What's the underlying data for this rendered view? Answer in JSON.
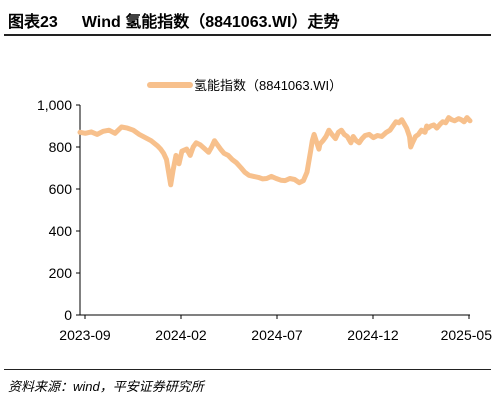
{
  "figure": {
    "label": "图表23",
    "title": "Wind 氢能指数（8841063.WI）走势",
    "source": "资料来源：wind，平安证券研究所"
  },
  "colors": {
    "line": "#F7C08C",
    "axis": "#000000"
  },
  "chart_data": {
    "type": "line",
    "title": "",
    "xlabel": "",
    "ylabel": "",
    "ylim": [
      0,
      1000
    ],
    "yticks": [
      "0",
      "200",
      "400",
      "600",
      "800",
      "1,000"
    ],
    "xtick_labels": [
      "2023-09",
      "2024-02",
      "2024-07",
      "2024-12",
      "2025-05"
    ],
    "xlim": [
      "2023-09-01",
      "2025-06-20"
    ],
    "legend_position": "top-center",
    "grid": false,
    "series": [
      {
        "name": "氢能指数（8841063.WI）",
        "x": [
          "2023-09-01",
          "2023-09-10",
          "2023-09-20",
          "2023-09-30",
          "2023-10-10",
          "2023-10-20",
          "2023-10-30",
          "2023-11-10",
          "2023-11-20",
          "2023-11-30",
          "2023-12-10",
          "2023-12-20",
          "2023-12-30",
          "2024-01-10",
          "2024-01-15",
          "2024-01-20",
          "2024-01-25",
          "2024-02-01",
          "2024-02-05",
          "2024-02-10",
          "2024-02-15",
          "2024-02-20",
          "2024-02-28",
          "2024-03-05",
          "2024-03-10",
          "2024-03-15",
          "2024-03-22",
          "2024-03-30",
          "2024-04-05",
          "2024-04-10",
          "2024-04-15",
          "2024-04-20",
          "2024-04-25",
          "2024-05-01",
          "2024-05-08",
          "2024-05-15",
          "2024-05-22",
          "2024-05-30",
          "2024-06-05",
          "2024-06-12",
          "2024-06-20",
          "2024-06-28",
          "2024-07-05",
          "2024-07-12",
          "2024-07-20",
          "2024-07-28",
          "2024-08-05",
          "2024-08-12",
          "2024-08-20",
          "2024-08-28",
          "2024-09-05",
          "2024-09-12",
          "2024-09-18",
          "2024-09-24",
          "2024-09-27",
          "2024-09-30",
          "2024-10-08",
          "2024-10-10",
          "2024-10-15",
          "2024-10-20",
          "2024-10-25",
          "2024-10-30",
          "2024-11-05",
          "2024-11-10",
          "2024-11-15",
          "2024-11-20",
          "2024-11-25",
          "2024-12-01",
          "2024-12-05",
          "2024-12-10",
          "2024-12-15",
          "2024-12-20",
          "2024-12-25",
          "2025-01-01",
          "2025-01-08",
          "2025-01-15",
          "2025-01-22",
          "2025-01-30",
          "2025-02-05",
          "2025-02-10",
          "2025-02-15",
          "2025-02-20",
          "2025-02-25",
          "2025-03-01",
          "2025-03-05",
          "2025-03-10",
          "2025-03-12",
          "2025-03-15",
          "2025-03-20",
          "2025-03-25",
          "2025-03-30",
          "2025-04-05",
          "2025-04-08",
          "2025-04-10",
          "2025-04-15",
          "2025-04-20",
          "2025-04-25",
          "2025-05-01",
          "2025-05-05",
          "2025-05-10",
          "2025-05-15",
          "2025-05-20",
          "2025-05-25",
          "2025-06-01",
          "2025-06-05",
          "2025-06-10",
          "2025-06-15",
          "2025-06-20"
        ],
        "y": [
          870,
          865,
          872,
          860,
          875,
          880,
          865,
          895,
          890,
          880,
          860,
          845,
          830,
          805,
          790,
          770,
          740,
          620,
          690,
          760,
          720,
          780,
          790,
          760,
          800,
          820,
          810,
          790,
          775,
          800,
          830,
          810,
          790,
          770,
          760,
          740,
          725,
          700,
          680,
          665,
          660,
          655,
          648,
          650,
          660,
          650,
          642,
          640,
          650,
          645,
          630,
          640,
          680,
          780,
          830,
          860,
          790,
          815,
          830,
          850,
          880,
          860,
          840,
          870,
          880,
          860,
          850,
          820,
          850,
          830,
          820,
          840,
          855,
          860,
          845,
          855,
          850,
          870,
          880,
          900,
          920,
          915,
          930,
          910,
          890,
          850,
          800,
          820,
          850,
          860,
          880,
          870,
          900,
          890,
          900,
          905,
          890,
          910,
          920,
          915,
          940,
          930,
          925,
          935,
          930,
          920,
          940,
          925
        ]
      }
    ]
  }
}
